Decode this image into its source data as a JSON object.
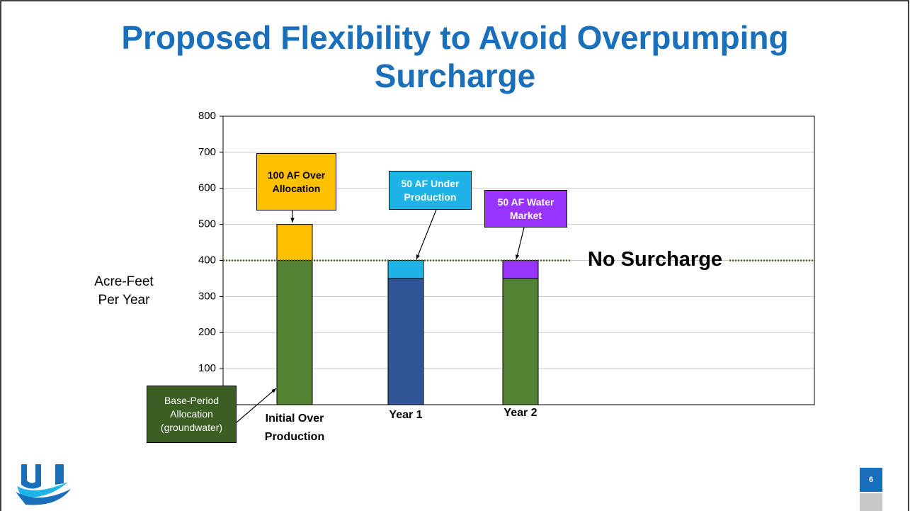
{
  "title": "Proposed Flexibility to Avoid Overpumping Surcharge",
  "page_number": "6",
  "chart_data": {
    "type": "bar",
    "stacked": true,
    "y_label": "Acre-Feet Per Year",
    "categories": [
      "Initial Over Production",
      "Year 1",
      "Year 2"
    ],
    "series": [
      {
        "colors": [
          "#548235",
          "#2f5597",
          "#548235"
        ],
        "values": [
          400,
          350,
          350
        ]
      },
      {
        "colors": [
          "#ffc000",
          "#1fb4e8",
          "#9933ff"
        ],
        "values": [
          100,
          50,
          50
        ]
      }
    ],
    "ylim": [
      0,
      800
    ],
    "yticks": [
      100,
      200,
      300,
      400,
      500,
      600,
      700,
      800
    ],
    "grid": true,
    "reference_line": {
      "value": 400,
      "label": "No Surcharge",
      "color": "#4d6b2a"
    },
    "annotations": [
      {
        "text": "100 AF Over Allocation",
        "color": "#ffc000"
      },
      {
        "text": "50 AF Under Production",
        "color": "#1fb4e8"
      },
      {
        "text": "50 AF Water Market",
        "color": "#9933ff"
      },
      {
        "text": "Base-Period Allocation (groundwater)",
        "color": "#3b5e22"
      }
    ]
  }
}
